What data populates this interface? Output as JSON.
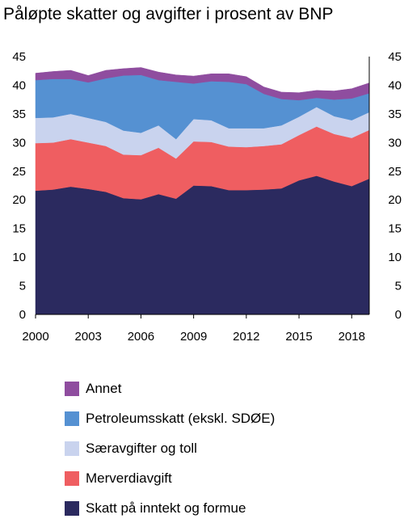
{
  "title": "Påløpte skatter og avgifter i prosent av BNP",
  "chart_data": {
    "type": "area",
    "stacked": true,
    "x": [
      2000,
      2001,
      2002,
      2003,
      2004,
      2005,
      2006,
      2007,
      2008,
      2009,
      2010,
      2011,
      2012,
      2013,
      2014,
      2015,
      2016,
      2017,
      2018,
      2019
    ],
    "x_tick_labels": [
      "2000",
      "2003",
      "2006",
      "2009",
      "2012",
      "2015",
      "2018"
    ],
    "x_tick_values": [
      2000,
      2003,
      2006,
      2009,
      2012,
      2015,
      2018
    ],
    "y_tick_labels": [
      "0",
      "5",
      "10",
      "15",
      "20",
      "25",
      "30",
      "35",
      "40",
      "45"
    ],
    "ylim": [
      0,
      45
    ],
    "xlim": [
      2000,
      2019
    ],
    "series": [
      {
        "name": "Skatt på inntekt og formue",
        "color": "#2b2a5f",
        "values": [
          21.6,
          21.8,
          22.3,
          21.9,
          21.4,
          20.3,
          20.1,
          21.0,
          20.2,
          22.5,
          22.4,
          21.7,
          21.7,
          21.8,
          22.0,
          23.4,
          24.2,
          23.2,
          22.4,
          23.7
        ]
      },
      {
        "name": "Merverdiavgift",
        "color": "#ef5e61",
        "values": [
          8.3,
          8.2,
          8.3,
          8.1,
          8.0,
          7.6,
          7.7,
          8.1,
          7.0,
          7.7,
          7.7,
          7.6,
          7.5,
          7.6,
          7.7,
          7.9,
          8.6,
          8.3,
          8.4,
          8.5
        ]
      },
      {
        "name": "Særavgifter og toll",
        "color": "#c9d3ee",
        "values": [
          4.4,
          4.4,
          4.4,
          4.3,
          4.2,
          4.2,
          3.9,
          3.9,
          3.4,
          3.9,
          3.8,
          3.2,
          3.3,
          3.1,
          3.3,
          3.2,
          3.4,
          3.1,
          3.1,
          3.1
        ]
      },
      {
        "name": "Petroleumsskatt (ekskl. SDØE)",
        "color": "#5591d2",
        "values": [
          6.6,
          6.7,
          6.1,
          6.2,
          7.6,
          9.6,
          10.1,
          7.9,
          10.0,
          6.2,
          6.8,
          8.1,
          7.7,
          6.0,
          4.6,
          2.9,
          1.6,
          2.9,
          3.8,
          3.3
        ]
      },
      {
        "name": "Annet",
        "color": "#8f4d9f",
        "values": [
          1.2,
          1.3,
          1.5,
          1.2,
          1.4,
          1.2,
          1.3,
          1.4,
          1.2,
          1.3,
          1.3,
          1.4,
          1.3,
          1.2,
          1.2,
          1.3,
          1.3,
          1.5,
          1.7,
          1.8
        ]
      }
    ]
  }
}
